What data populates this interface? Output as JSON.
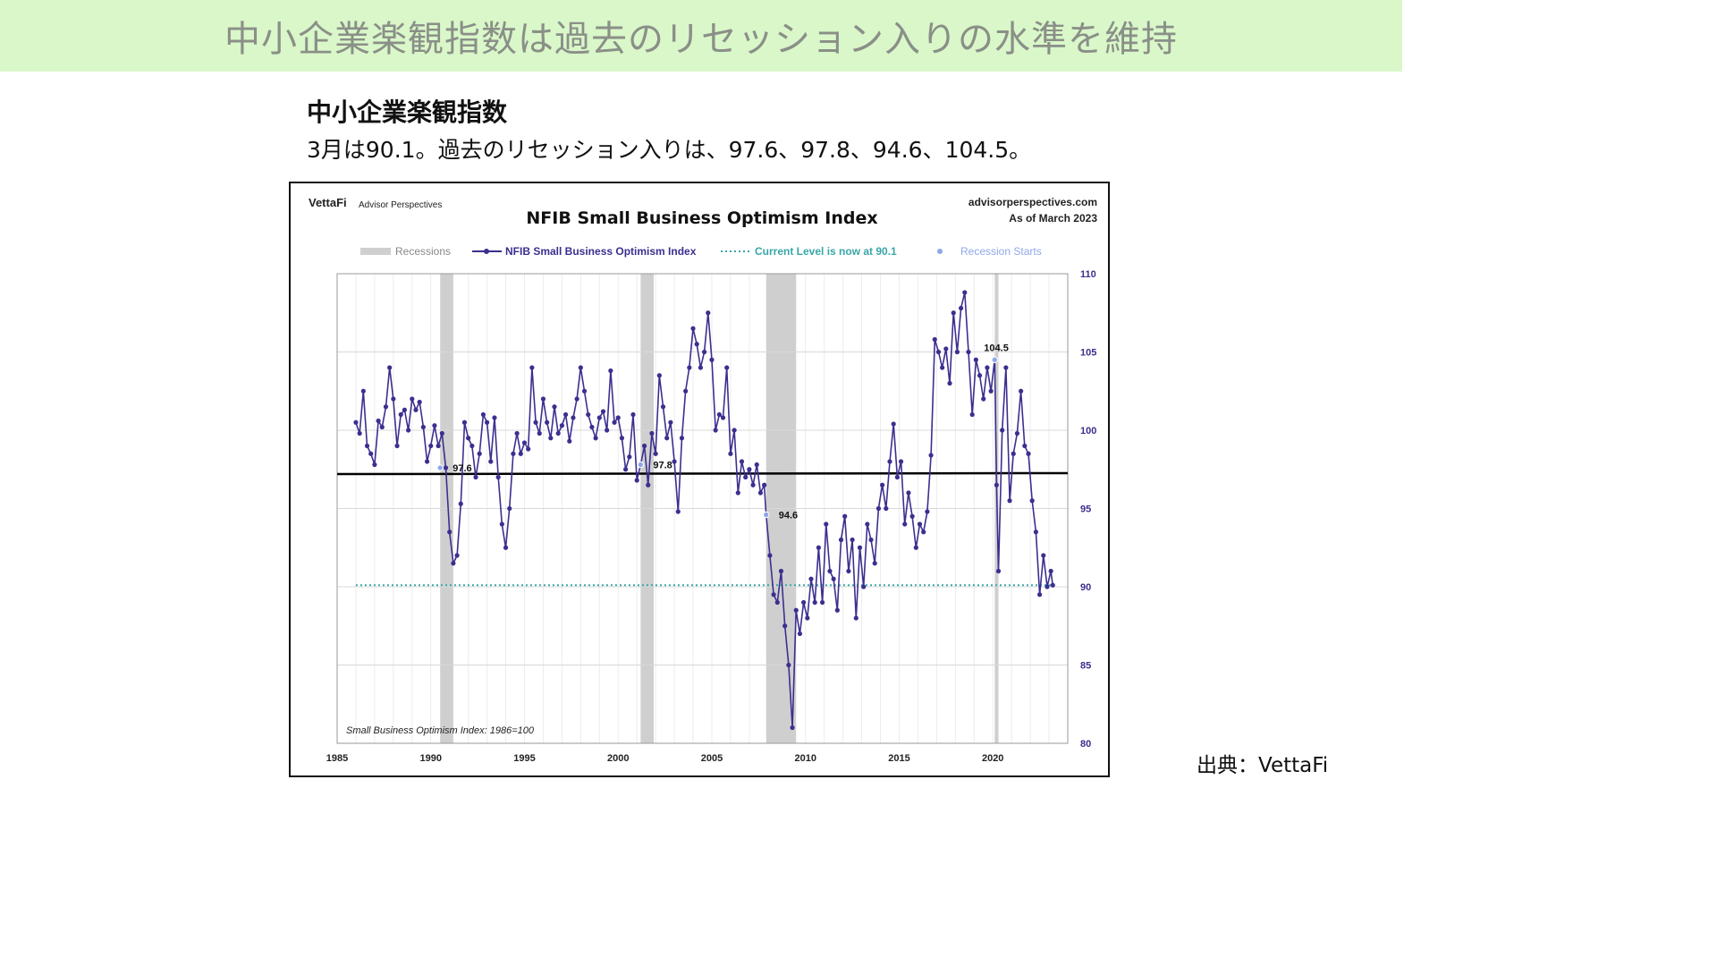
{
  "banner": {
    "title": "中小企業楽観指数は過去のリセッション入りの水準を維持"
  },
  "heading": "中小企業楽観指数",
  "subtitle": "3月は90.1。過去のリセッション入りは、97.6、97.8、94.6、104.5。",
  "source": "出典：VettaFi",
  "colors": {
    "banner_bg": "#d9f7c8",
    "series": "#3b2f8f",
    "recession_band": "#cfcfcf",
    "current_level": "#3aa6a6",
    "recession_start": "#8fa8e8"
  },
  "chart_data": {
    "type": "line",
    "title": "NFIB Small Business Optimism Index",
    "brand": "VettaFi",
    "brand_sub": "Advisor Perspectives",
    "site": "advisorperspectives.com",
    "as_of": "As of March 2023",
    "footnote": "Small Business Optimism Index: 1986=100",
    "legend": {
      "recessions": "Recessions",
      "series": "NFIB Small Business Optimism Index",
      "current": "Current Level is now at 90.1",
      "starts": "Recession Starts"
    },
    "x_ticks": [
      "1985",
      "1990",
      "1995",
      "2000",
      "2005",
      "2010",
      "2015",
      "2020"
    ],
    "y_ticks": [
      "80",
      "85",
      "90",
      "95",
      "100",
      "105",
      "110"
    ],
    "xlim": [
      1985,
      2024
    ],
    "ylim": [
      80,
      110
    ],
    "current_level": 90.1,
    "reference_line": 97.2,
    "recessions": [
      [
        1990.5,
        1991.2
      ],
      [
        2001.2,
        2001.9
      ],
      [
        2007.9,
        2009.5
      ],
      [
        2020.1,
        2020.3
      ]
    ],
    "recession_starts": [
      {
        "x": 1990.5,
        "y": 97.6,
        "label": "97.6"
      },
      {
        "x": 2001.2,
        "y": 97.8,
        "label": "97.8"
      },
      {
        "x": 2007.9,
        "y": 94.6,
        "label": "94.6"
      },
      {
        "x": 2020.1,
        "y": 104.5,
        "label": "104.5"
      }
    ],
    "series": [
      {
        "name": "NFIB Small Business Optimism Index",
        "points": [
          [
            1986.0,
            100.5
          ],
          [
            1986.2,
            99.8
          ],
          [
            1986.4,
            102.5
          ],
          [
            1986.6,
            99.0
          ],
          [
            1986.8,
            98.5
          ],
          [
            1987.0,
            97.8
          ],
          [
            1987.2,
            100.6
          ],
          [
            1987.4,
            100.2
          ],
          [
            1987.6,
            101.5
          ],
          [
            1987.8,
            104.0
          ],
          [
            1988.0,
            102.0
          ],
          [
            1988.2,
            99.0
          ],
          [
            1988.4,
            101.0
          ],
          [
            1988.6,
            101.3
          ],
          [
            1988.8,
            100.0
          ],
          [
            1989.0,
            102.0
          ],
          [
            1989.2,
            101.3
          ],
          [
            1989.4,
            101.8
          ],
          [
            1989.6,
            100.2
          ],
          [
            1989.8,
            98.0
          ],
          [
            1990.0,
            99.0
          ],
          [
            1990.2,
            100.3
          ],
          [
            1990.4,
            99.0
          ],
          [
            1990.6,
            99.8
          ],
          [
            1990.8,
            97.6
          ],
          [
            1991.0,
            93.5
          ],
          [
            1991.2,
            91.5
          ],
          [
            1991.4,
            92.0
          ],
          [
            1991.6,
            95.3
          ],
          [
            1991.8,
            100.5
          ],
          [
            1992.0,
            99.5
          ],
          [
            1992.2,
            99.0
          ],
          [
            1992.4,
            97.0
          ],
          [
            1992.6,
            98.5
          ],
          [
            1992.8,
            101.0
          ],
          [
            1993.0,
            100.5
          ],
          [
            1993.2,
            98.0
          ],
          [
            1993.4,
            100.8
          ],
          [
            1993.6,
            97.0
          ],
          [
            1993.8,
            94.0
          ],
          [
            1994.0,
            92.5
          ],
          [
            1994.2,
            95.0
          ],
          [
            1994.4,
            98.5
          ],
          [
            1994.6,
            99.8
          ],
          [
            1994.8,
            98.5
          ],
          [
            1995.0,
            99.2
          ],
          [
            1995.2,
            98.8
          ],
          [
            1995.4,
            104.0
          ],
          [
            1995.6,
            100.5
          ],
          [
            1995.8,
            99.8
          ],
          [
            1996.0,
            102.0
          ],
          [
            1996.2,
            100.5
          ],
          [
            1996.4,
            99.5
          ],
          [
            1996.6,
            101.5
          ],
          [
            1996.8,
            99.8
          ],
          [
            1997.0,
            100.3
          ],
          [
            1997.2,
            101.0
          ],
          [
            1997.4,
            99.3
          ],
          [
            1997.6,
            100.8
          ],
          [
            1997.8,
            102.0
          ],
          [
            1998.0,
            104.0
          ],
          [
            1998.2,
            102.5
          ],
          [
            1998.4,
            101.0
          ],
          [
            1998.6,
            100.2
          ],
          [
            1998.8,
            99.5
          ],
          [
            1999.0,
            100.8
          ],
          [
            1999.2,
            101.2
          ],
          [
            1999.4,
            100.0
          ],
          [
            1999.6,
            103.8
          ],
          [
            1999.8,
            100.5
          ],
          [
            2000.0,
            100.8
          ],
          [
            2000.2,
            99.5
          ],
          [
            2000.4,
            97.5
          ],
          [
            2000.6,
            98.3
          ],
          [
            2000.8,
            101.0
          ],
          [
            2001.0,
            96.8
          ],
          [
            2001.2,
            97.8
          ],
          [
            2001.4,
            99.0
          ],
          [
            2001.6,
            96.5
          ],
          [
            2001.8,
            99.8
          ],
          [
            2002.0,
            98.5
          ],
          [
            2002.2,
            103.5
          ],
          [
            2002.4,
            101.5
          ],
          [
            2002.6,
            99.5
          ],
          [
            2002.8,
            100.5
          ],
          [
            2003.0,
            98.0
          ],
          [
            2003.2,
            94.8
          ],
          [
            2003.4,
            99.5
          ],
          [
            2003.6,
            102.5
          ],
          [
            2003.8,
            104.0
          ],
          [
            2004.0,
            106.5
          ],
          [
            2004.2,
            105.5
          ],
          [
            2004.4,
            104.0
          ],
          [
            2004.6,
            105.0
          ],
          [
            2004.8,
            107.5
          ],
          [
            2005.0,
            104.5
          ],
          [
            2005.2,
            100.0
          ],
          [
            2005.4,
            101.0
          ],
          [
            2005.6,
            100.8
          ],
          [
            2005.8,
            104.0
          ],
          [
            2006.0,
            98.5
          ],
          [
            2006.2,
            100.0
          ],
          [
            2006.4,
            96.0
          ],
          [
            2006.6,
            98.0
          ],
          [
            2006.8,
            97.0
          ],
          [
            2007.0,
            97.5
          ],
          [
            2007.2,
            96.5
          ],
          [
            2007.4,
            97.8
          ],
          [
            2007.6,
            96.0
          ],
          [
            2007.8,
            96.5
          ],
          [
            2007.9,
            94.6
          ],
          [
            2008.1,
            92.0
          ],
          [
            2008.3,
            89.5
          ],
          [
            2008.5,
            89.0
          ],
          [
            2008.7,
            91.0
          ],
          [
            2008.9,
            87.5
          ],
          [
            2009.1,
            85.0
          ],
          [
            2009.3,
            81.0
          ],
          [
            2009.5,
            88.5
          ],
          [
            2009.7,
            87.0
          ],
          [
            2009.9,
            89.0
          ],
          [
            2010.1,
            88.0
          ],
          [
            2010.3,
            90.5
          ],
          [
            2010.5,
            89.0
          ],
          [
            2010.7,
            92.5
          ],
          [
            2010.9,
            89.0
          ],
          [
            2011.1,
            94.0
          ],
          [
            2011.3,
            91.0
          ],
          [
            2011.5,
            90.5
          ],
          [
            2011.7,
            88.5
          ],
          [
            2011.9,
            93.0
          ],
          [
            2012.1,
            94.5
          ],
          [
            2012.3,
            91.0
          ],
          [
            2012.5,
            93.0
          ],
          [
            2012.7,
            88.0
          ],
          [
            2012.9,
            92.5
          ],
          [
            2013.1,
            90.0
          ],
          [
            2013.3,
            94.0
          ],
          [
            2013.5,
            93.0
          ],
          [
            2013.7,
            91.5
          ],
          [
            2013.9,
            95.0
          ],
          [
            2014.1,
            96.5
          ],
          [
            2014.3,
            95.0
          ],
          [
            2014.5,
            98.0
          ],
          [
            2014.7,
            100.4
          ],
          [
            2014.9,
            97.0
          ],
          [
            2015.1,
            98.0
          ],
          [
            2015.3,
            94.0
          ],
          [
            2015.5,
            96.0
          ],
          [
            2015.7,
            94.5
          ],
          [
            2015.9,
            92.5
          ],
          [
            2016.1,
            94.0
          ],
          [
            2016.3,
            93.5
          ],
          [
            2016.5,
            94.8
          ],
          [
            2016.7,
            98.4
          ],
          [
            2016.9,
            105.8
          ],
          [
            2017.1,
            105.0
          ],
          [
            2017.3,
            104.0
          ],
          [
            2017.5,
            105.2
          ],
          [
            2017.7,
            103.0
          ],
          [
            2017.9,
            107.5
          ],
          [
            2018.1,
            105.0
          ],
          [
            2018.3,
            107.8
          ],
          [
            2018.5,
            108.8
          ],
          [
            2018.7,
            105.0
          ],
          [
            2018.9,
            101.0
          ],
          [
            2019.1,
            104.5
          ],
          [
            2019.3,
            103.5
          ],
          [
            2019.5,
            102.0
          ],
          [
            2019.7,
            104.0
          ],
          [
            2019.9,
            102.5
          ],
          [
            2020.1,
            104.5
          ],
          [
            2020.2,
            96.5
          ],
          [
            2020.3,
            91.0
          ],
          [
            2020.5,
            100.0
          ],
          [
            2020.7,
            104.0
          ],
          [
            2020.9,
            95.5
          ],
          [
            2021.1,
            98.5
          ],
          [
            2021.3,
            99.8
          ],
          [
            2021.5,
            102.5
          ],
          [
            2021.7,
            99.0
          ],
          [
            2021.9,
            98.5
          ],
          [
            2022.1,
            95.5
          ],
          [
            2022.3,
            93.5
          ],
          [
            2022.5,
            89.5
          ],
          [
            2022.7,
            92.0
          ],
          [
            2022.9,
            90.0
          ],
          [
            2023.1,
            91.0
          ],
          [
            2023.2,
            90.1
          ]
        ]
      }
    ]
  }
}
